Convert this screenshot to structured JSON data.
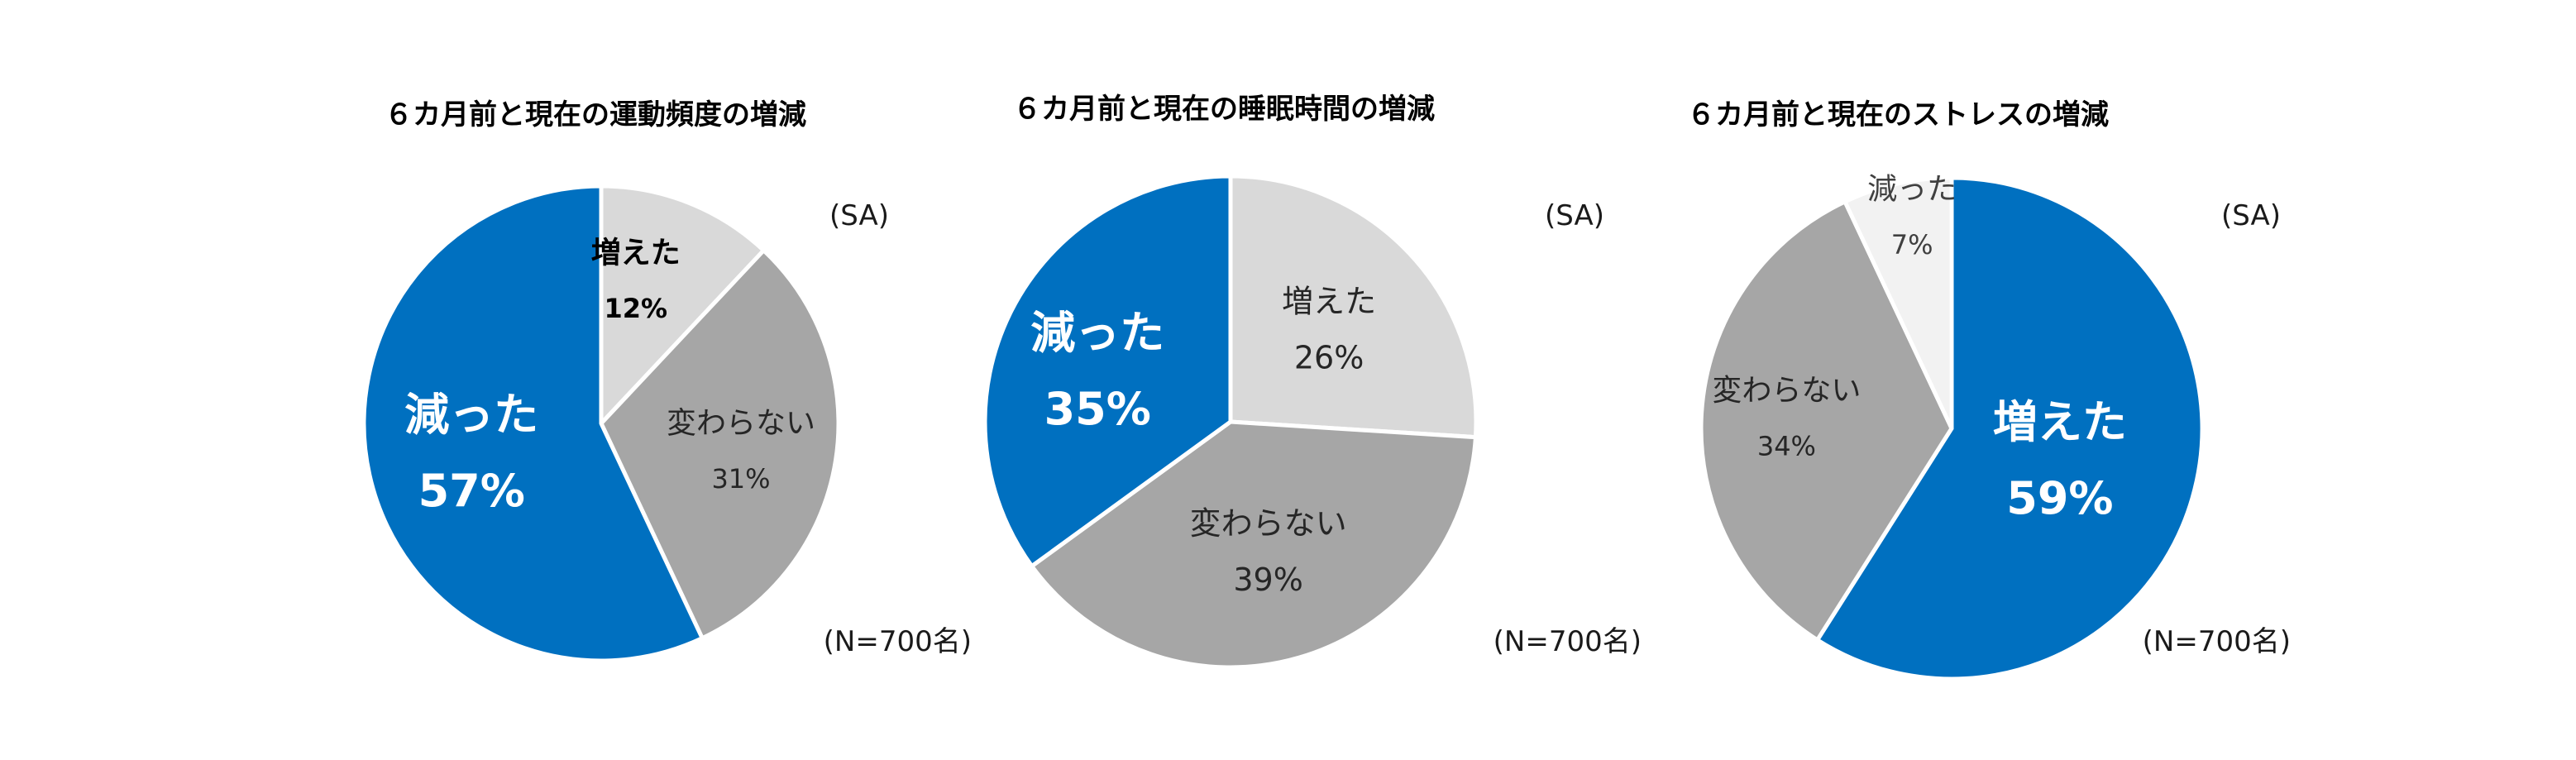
{
  "chart_data": [
    {
      "type": "pie",
      "title": "６カ月前と現在の運動頻度の増減",
      "sa_label": "(SA)",
      "n_label": "(N=700名)",
      "slices": [
        {
          "label": "増えた",
          "value": 12,
          "value_label": "12%",
          "color": "#d9d9d9",
          "text_color": "#000000",
          "bold": true,
          "size": "small"
        },
        {
          "label": "変わらない",
          "value": 31,
          "value_label": "31%",
          "color": "#a6a6a6",
          "text_color": "#262626",
          "bold": false,
          "size": "small"
        },
        {
          "label": "減った",
          "value": 57,
          "value_label": "57%",
          "color": "#0070c0",
          "text_color": "#ffffff",
          "bold": true,
          "size": "large"
        }
      ]
    },
    {
      "type": "pie",
      "title": "６カ月前と現在の睡眠時間の増減",
      "sa_label": "(SA)",
      "n_label": "(N=700名)",
      "slices": [
        {
          "label": "増えた",
          "value": 26,
          "value_label": "26%",
          "color": "#d9d9d9",
          "text_color": "#262626",
          "bold": false,
          "size": "medium"
        },
        {
          "label": "変わらない",
          "value": 39,
          "value_label": "39%",
          "color": "#a6a6a6",
          "text_color": "#262626",
          "bold": false,
          "size": "medium"
        },
        {
          "label": "減った",
          "value": 35,
          "value_label": "35%",
          "color": "#0070c0",
          "text_color": "#ffffff",
          "bold": true,
          "size": "large"
        }
      ]
    },
    {
      "type": "pie",
      "title": "６カ月前と現在のストレスの増減",
      "sa_label": "(SA)",
      "n_label": "(N=700名)",
      "slices": [
        {
          "label": "増えた",
          "value": 59,
          "value_label": "59%",
          "color": "#0070c0",
          "text_color": "#ffffff",
          "bold": true,
          "size": "large"
        },
        {
          "label": "変わらない",
          "value": 34,
          "value_label": "34%",
          "color": "#a6a6a6",
          "text_color": "#262626",
          "bold": false,
          "size": "small"
        },
        {
          "label": "減った",
          "value": 7,
          "value_label": "7%",
          "color": "#f2f2f2",
          "text_color": "#404040",
          "bold": false,
          "size": "small"
        }
      ]
    }
  ]
}
